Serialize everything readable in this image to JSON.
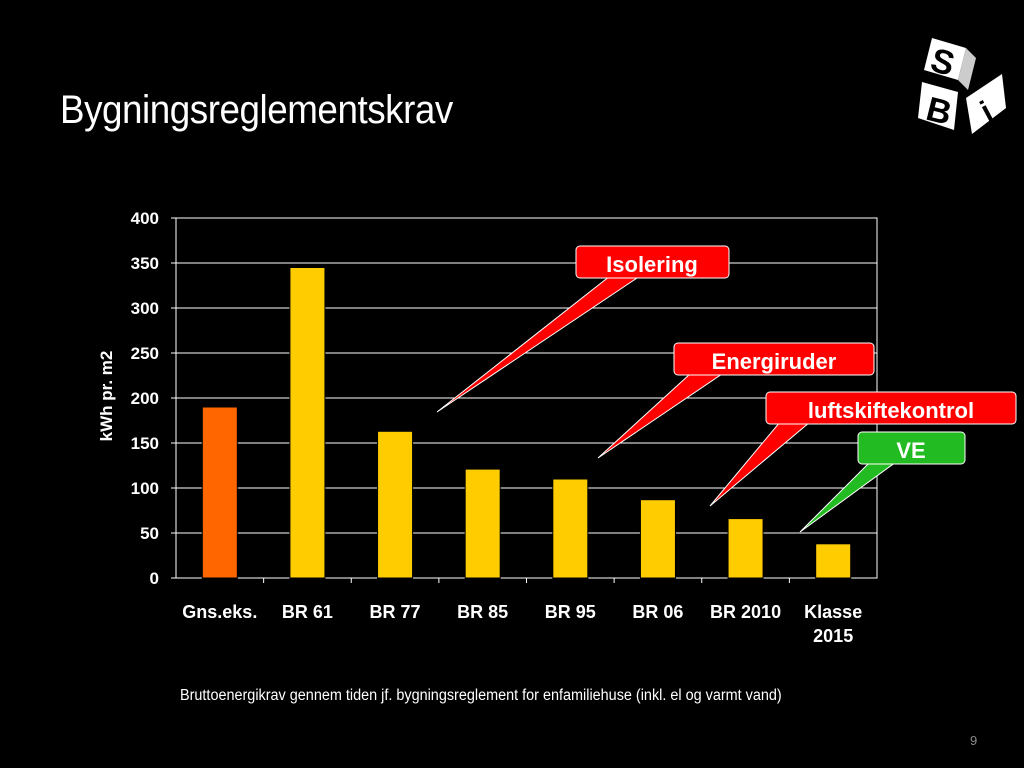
{
  "slide": {
    "title": "Bygningsreglementskrav",
    "caption": "Bruttoenergikrav gennem tiden jf. bygningsreglement for enfamiliehuse (inkl. el og varmt vand)",
    "page_number": "9",
    "logo": {
      "letters": [
        "S",
        "B",
        "i"
      ]
    }
  },
  "chart_data": {
    "type": "bar",
    "ylabel": "kWh pr. m2",
    "xlabel": "",
    "ylim": [
      0,
      400
    ],
    "yticks": [
      0,
      50,
      100,
      150,
      200,
      250,
      300,
      350,
      400
    ],
    "categories": [
      "Gns.eks.",
      "BR 61",
      "BR 77",
      "BR 85",
      "BR 95",
      "BR 06",
      "BR 2010",
      "Klasse 2015"
    ],
    "values": [
      190,
      345,
      163,
      121,
      110,
      87,
      66,
      38
    ],
    "colors": [
      "#ff6600",
      "#ffcc00",
      "#ffcc00",
      "#ffcc00",
      "#ffcc00",
      "#ffcc00",
      "#ffcc00",
      "#ffcc00"
    ],
    "grid": true,
    "annotations": [
      {
        "text": "Isolering",
        "color": "#ff0000"
      },
      {
        "text": "Energiruder",
        "color": "#ff0000"
      },
      {
        "text": "luftskiftekontrol",
        "color": "#ff0000"
      },
      {
        "text": "VE",
        "color": "#22bb22"
      }
    ]
  }
}
